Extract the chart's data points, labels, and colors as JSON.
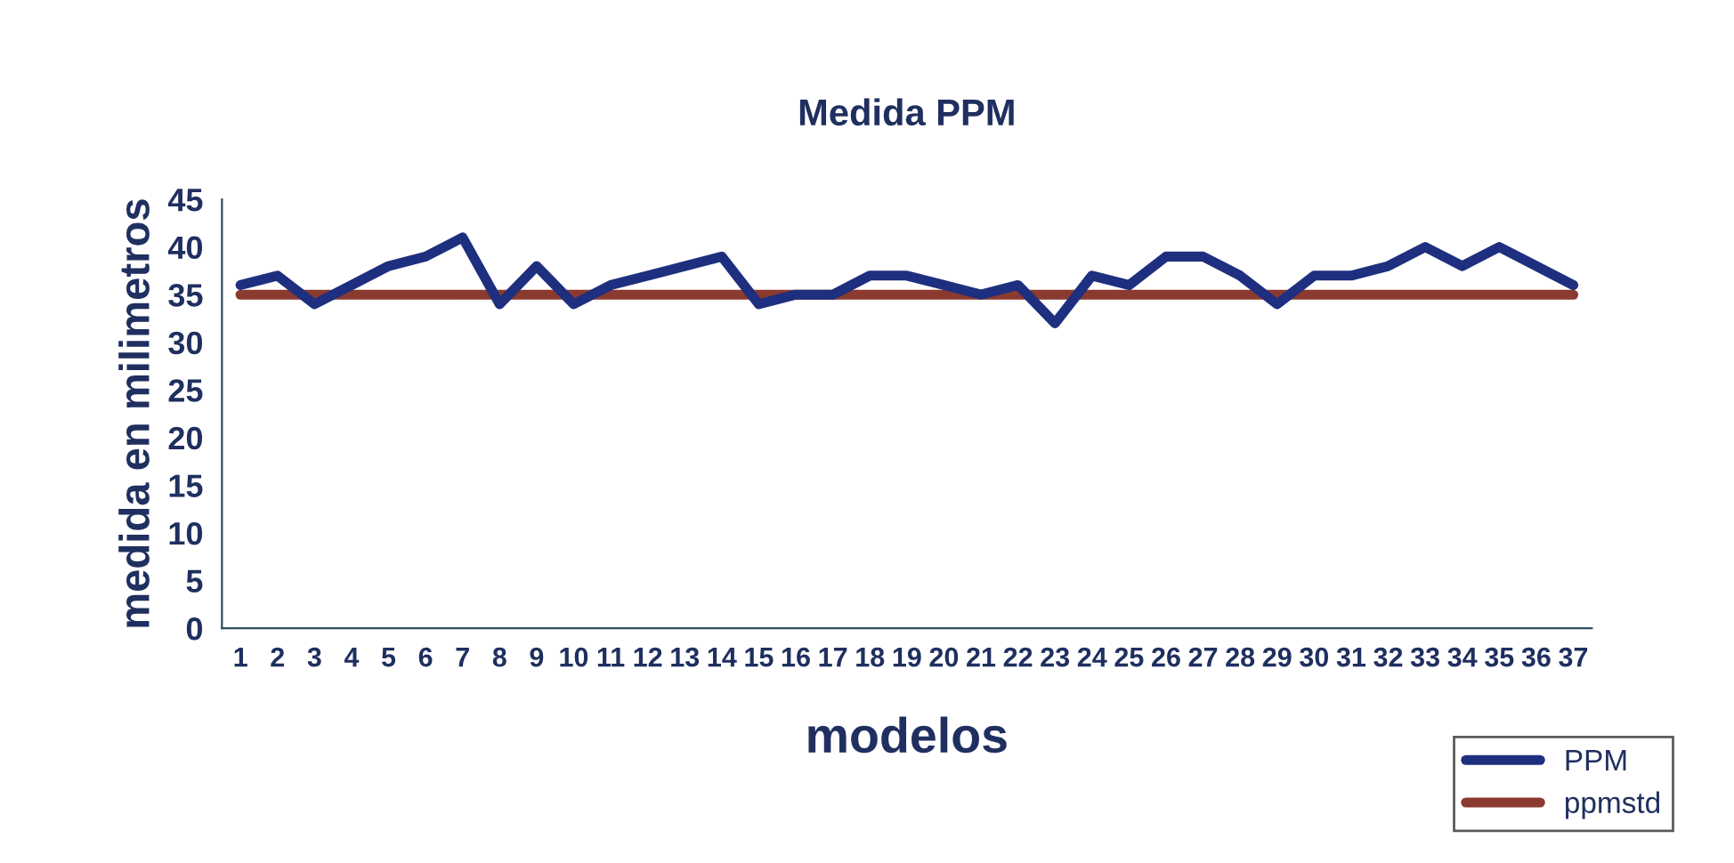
{
  "chart_data": {
    "type": "line",
    "title": "Medida PPM",
    "xlabel": "modelos",
    "ylabel": "medida en milimetros",
    "categories": [
      "1",
      "2",
      "3",
      "4",
      "5",
      "6",
      "7",
      "8",
      "9",
      "10",
      "11",
      "12",
      "13",
      "14",
      "15",
      "16",
      "17",
      "18",
      "19",
      "20",
      "21",
      "22",
      "23",
      "24",
      "25",
      "26",
      "27",
      "28",
      "29",
      "30",
      "31",
      "32",
      "33",
      "34",
      "35",
      "36",
      "37"
    ],
    "series": [
      {
        "name": "PPM",
        "color": "#1f2f7f",
        "values": [
          36,
          37,
          34,
          36,
          38,
          39,
          41,
          34,
          38,
          34,
          36,
          37,
          38,
          39,
          34,
          35,
          35,
          37,
          37,
          36,
          35,
          36,
          32,
          37,
          36,
          39,
          39,
          37,
          34,
          37,
          37,
          38,
          40,
          38,
          40,
          38,
          36
        ]
      },
      {
        "name": "ppmstd",
        "color": "#8b3a2f",
        "values": [
          35,
          35,
          35,
          35,
          35,
          35,
          35,
          35,
          35,
          35,
          35,
          35,
          35,
          35,
          35,
          35,
          35,
          35,
          35,
          35,
          35,
          35,
          35,
          35,
          35,
          35,
          35,
          35,
          35,
          35,
          35,
          35,
          35,
          35,
          35,
          35,
          35
        ]
      }
    ],
    "ylim": [
      0,
      45
    ],
    "yticks": [
      0,
      5,
      10,
      15,
      20,
      25,
      30,
      35,
      40,
      45
    ],
    "grid": false,
    "legend": "bottom right",
    "marker": "none",
    "line_style": "solid"
  }
}
